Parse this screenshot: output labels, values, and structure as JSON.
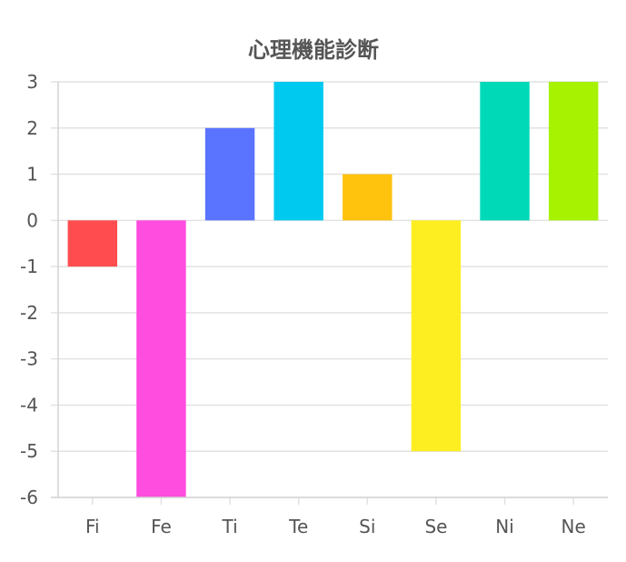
{
  "chart_data": {
    "type": "bar",
    "title": "心理機能診断",
    "xlabel": "",
    "ylabel": "",
    "categories": [
      "Fi",
      "Fe",
      "Ti",
      "Te",
      "Si",
      "Se",
      "Ni",
      "Ne"
    ],
    "values": [
      -1,
      -6,
      2,
      3,
      1,
      -5,
      3,
      3
    ],
    "colors": [
      "#ff4d4f",
      "#ff4ddf",
      "#5b74ff",
      "#00c9f0",
      "#ffc20d",
      "#fdee21",
      "#00d9b8",
      "#a6f200"
    ],
    "ylim": [
      -6,
      3
    ],
    "yticks": [
      "3",
      "2",
      "1",
      "0",
      "-1",
      "-2",
      "-3",
      "-4",
      "-5",
      "-6"
    ],
    "grid": true,
    "legend": "none"
  }
}
